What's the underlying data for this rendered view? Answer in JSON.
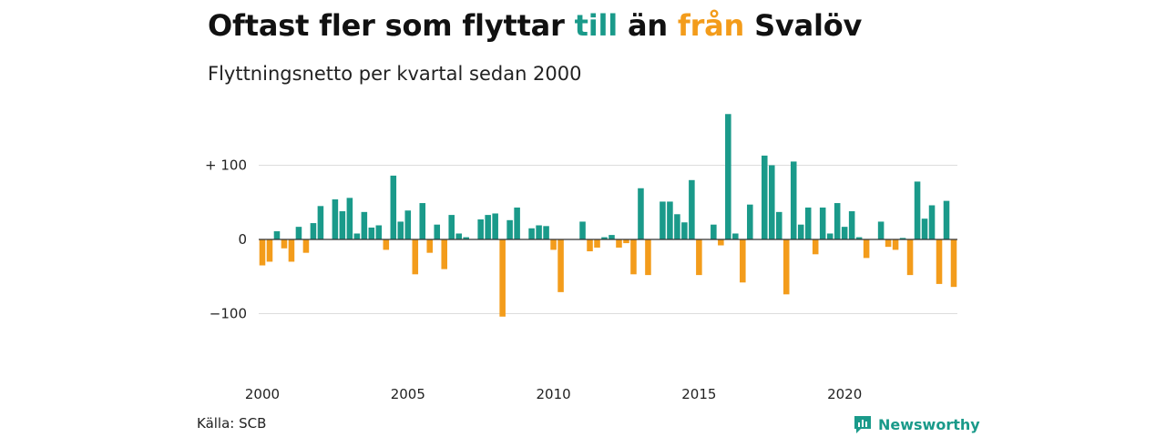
{
  "header": {
    "title_part1": "Oftast fler som flyttar ",
    "title_till": "till",
    "title_part2": " än ",
    "title_fran": "från",
    "title_part3": " Svalöv",
    "subtitle": "Flyttningsnetto per kvartal sedan 2000"
  },
  "footer": {
    "source": "Källa: SCB",
    "brand": "Newsworthy"
  },
  "colors": {
    "positive": "#1a9a8a",
    "negative": "#f39c1b",
    "grid": "#dddddd",
    "zero": "#333333"
  },
  "chart_data": {
    "type": "bar",
    "x_start": "2000-Q1",
    "values": [
      -35,
      -30,
      11,
      -12,
      -30,
      17,
      -18,
      22,
      45,
      0,
      54,
      38,
      56,
      8,
      37,
      16,
      19,
      -14,
      86,
      24,
      39,
      -47,
      49,
      -18,
      20,
      -40,
      33,
      8,
      3,
      0,
      27,
      33,
      35,
      -104,
      26,
      43,
      0,
      15,
      19,
      18,
      -14,
      -71,
      0,
      0,
      24,
      -16,
      -11,
      3,
      6,
      -11,
      -5,
      -47,
      69,
      -48,
      0,
      51,
      51,
      34,
      23,
      80,
      -48,
      0,
      20,
      -8,
      169,
      8,
      -58,
      47,
      0,
      113,
      100,
      37,
      -74,
      105,
      20,
      43,
      -20,
      43,
      8,
      49,
      17,
      38,
      3,
      -25,
      0,
      24,
      -10,
      -14,
      2,
      -48,
      78,
      28,
      46,
      -60,
      52,
      -64
    ],
    "x_ticks": [
      "2000",
      "2005",
      "2010",
      "2015",
      "2020"
    ],
    "y_ticks": [
      {
        "value": 100,
        "label": "+ 100"
      },
      {
        "value": 0,
        "label": "0"
      },
      {
        "value": -100,
        "label": "−100"
      }
    ],
    "ylim": [
      -130,
      175
    ],
    "xlabel": "",
    "ylabel": "",
    "grid": true
  }
}
